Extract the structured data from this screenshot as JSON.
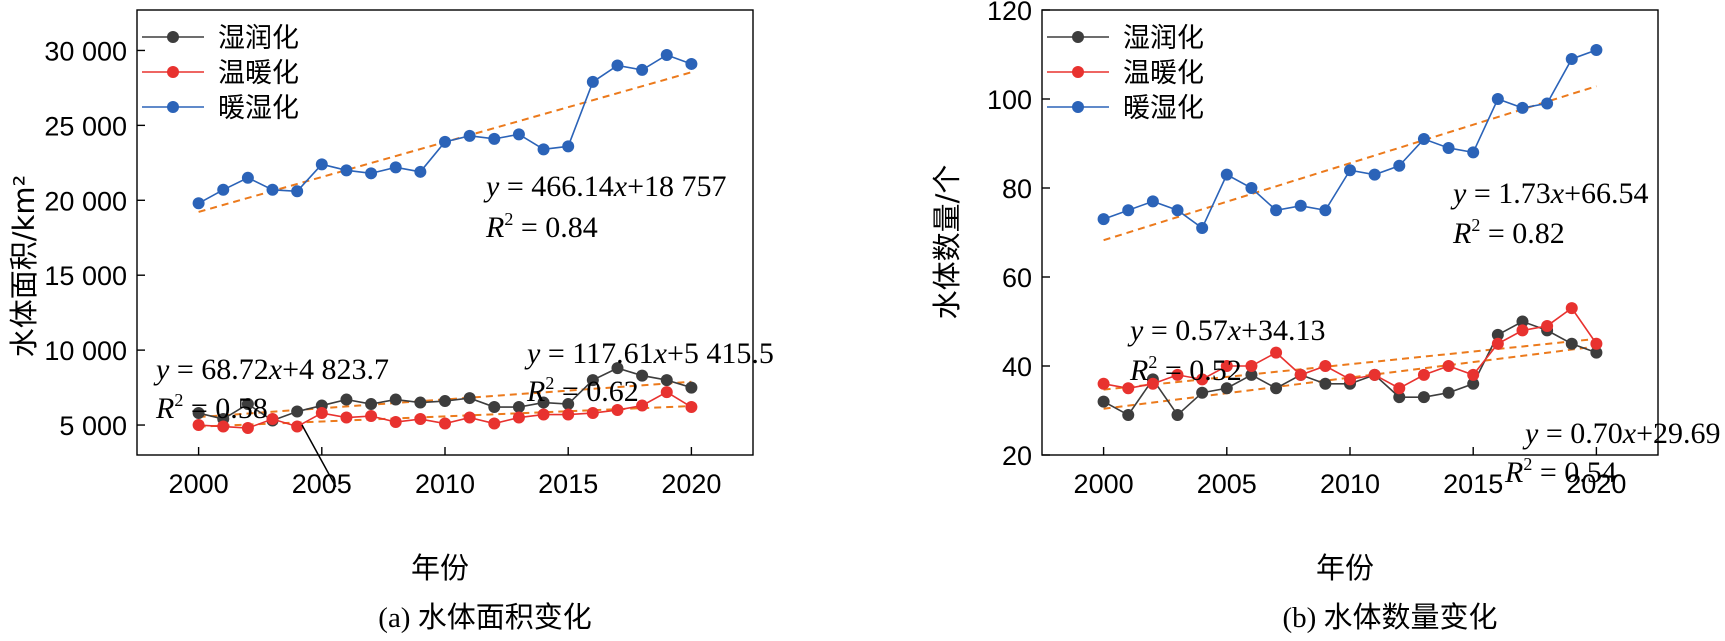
{
  "colors": {
    "humidification": "#3d3d3d",
    "warming": "#e8322f",
    "warm_humid": "#2b63b8",
    "trend": "#ec7a1c"
  },
  "chart_data": [
    {
      "type": "line",
      "caption": "(a) 水体面积变化",
      "xlabel": "年份",
      "ylabel": "水体面积/km²",
      "xlim": [
        1997.5,
        2022.5
      ],
      "ylim": [
        3000,
        32700
      ],
      "x_ticks": [
        2000,
        2005,
        2010,
        2015,
        2020
      ],
      "x_tick_labels": [
        "2000",
        "2005",
        "2010",
        "2015",
        "2020"
      ],
      "y_ticks": [
        5000,
        10000,
        15000,
        20000,
        25000,
        30000
      ],
      "y_tick_labels": [
        "5 000",
        "10 000",
        "15 000",
        "20 000",
        "25 000",
        "30 000"
      ],
      "legend_position": "top-left",
      "x": [
        2000,
        2001,
        2002,
        2003,
        2004,
        2005,
        2006,
        2007,
        2008,
        2009,
        2010,
        2011,
        2012,
        2013,
        2014,
        2015,
        2016,
        2017,
        2018,
        2019,
        2020
      ],
      "series": [
        {
          "name": "湿润化",
          "color_key": "humidification",
          "values": [
            5800,
            5400,
            6400,
            5300,
            5900,
            6300,
            6700,
            6400,
            6700,
            6500,
            6600,
            6800,
            6200,
            6200,
            6500,
            6400,
            8000,
            8800,
            8300,
            8000,
            7500
          ]
        },
        {
          "name": "温暖化",
          "color_key": "warming",
          "values": [
            5000,
            4900,
            4800,
            5400,
            4900,
            5800,
            5500,
            5600,
            5200,
            5400,
            5100,
            5500,
            5100,
            5500,
            5700,
            5700,
            5800,
            6000,
            6300,
            7200,
            6200
          ]
        },
        {
          "name": "暖湿化",
          "color_key": "warm_humid",
          "values": [
            19800,
            20700,
            21500,
            20700,
            20600,
            22400,
            22000,
            21800,
            22200,
            21900,
            23900,
            24300,
            24100,
            24400,
            23400,
            23600,
            27900,
            29000,
            28700,
            29700,
            29100
          ]
        }
      ],
      "trendlines": [
        {
          "slope": 466.14,
          "intercept": 18757
        },
        {
          "slope": 117.61,
          "intercept": 5415.5
        },
        {
          "slope": 68.72,
          "intercept": 4823.7
        }
      ],
      "annotations": [
        {
          "eq_a": "466.14",
          "eq_b": "18 757",
          "r2": "0.84"
        },
        {
          "eq_a": "117.61",
          "eq_b": "5 415.5",
          "r2": "0.62"
        },
        {
          "eq_a": "68.72",
          "eq_b": "4 823.7",
          "r2": "0.58"
        }
      ]
    },
    {
      "type": "line",
      "caption": "(b) 水体数量变化",
      "xlabel": "年份",
      "ylabel": "水体数量/个",
      "xlim": [
        1997.5,
        2022.5
      ],
      "ylim": [
        20,
        120
      ],
      "x_ticks": [
        2000,
        2005,
        2010,
        2015,
        2020
      ],
      "x_tick_labels": [
        "2000",
        "2005",
        "2010",
        "2015",
        "2020"
      ],
      "y_ticks": [
        20,
        40,
        60,
        80,
        100,
        120
      ],
      "y_tick_labels": [
        "20",
        "40",
        "60",
        "80",
        "100",
        "120"
      ],
      "legend_position": "top-left",
      "x": [
        2000,
        2001,
        2002,
        2003,
        2004,
        2005,
        2006,
        2007,
        2008,
        2009,
        2010,
        2011,
        2012,
        2013,
        2014,
        2015,
        2016,
        2017,
        2018,
        2019,
        2020
      ],
      "series": [
        {
          "name": "湿润化",
          "color_key": "humidification",
          "values": [
            32,
            29,
            37,
            29,
            34,
            35,
            38,
            35,
            38,
            36,
            36,
            38,
            33,
            33,
            34,
            36,
            47,
            50,
            48,
            45,
            43
          ]
        },
        {
          "name": "温暖化",
          "color_key": "warming",
          "values": [
            36,
            35,
            36,
            38,
            37,
            40,
            40,
            43,
            38,
            40,
            37,
            38,
            35,
            38,
            40,
            38,
            45,
            48,
            49,
            53,
            45
          ]
        },
        {
          "name": "暖湿化",
          "color_key": "warm_humid",
          "values": [
            73,
            75,
            77,
            75,
            71,
            83,
            80,
            75,
            76,
            75,
            84,
            83,
            85,
            91,
            89,
            88,
            100,
            98,
            99,
            109,
            111
          ]
        }
      ],
      "trendlines": [
        {
          "slope": 1.73,
          "intercept": 66.54
        },
        {
          "slope": 0.57,
          "intercept": 34.13
        },
        {
          "slope": 0.7,
          "intercept": 29.69
        }
      ],
      "annotations": [
        {
          "eq_a": "1.73",
          "eq_b": "66.54",
          "r2": "0.82"
        },
        {
          "eq_a": "0.57",
          "eq_b": "34.13",
          "r2": "0.52"
        },
        {
          "eq_a": "0.70",
          "eq_b": "29.69",
          "r2": "0.54"
        }
      ]
    }
  ]
}
